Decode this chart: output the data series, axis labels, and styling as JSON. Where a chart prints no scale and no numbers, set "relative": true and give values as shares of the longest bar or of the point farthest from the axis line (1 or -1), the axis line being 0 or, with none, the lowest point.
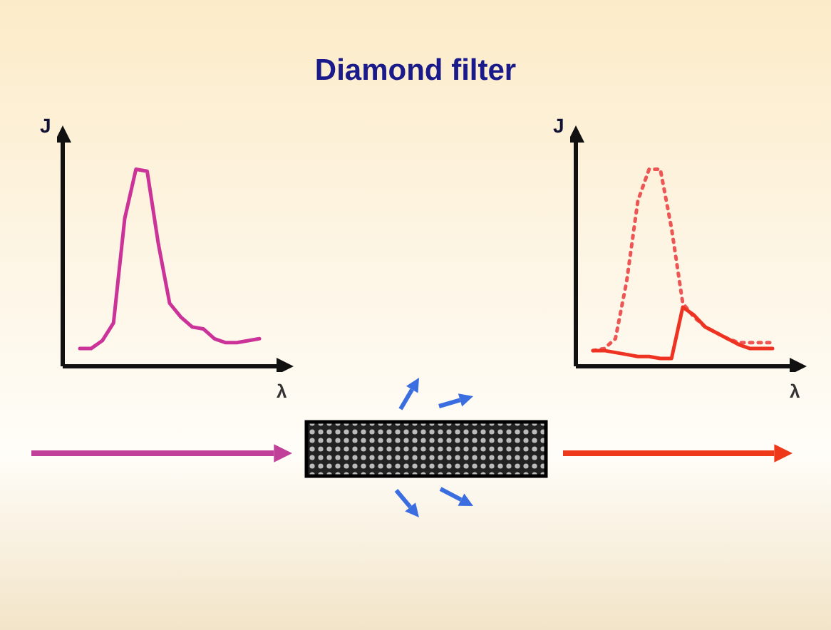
{
  "chart_data": [
    {
      "type": "other",
      "title": "Diamond filter"
    },
    {
      "type": "line",
      "xlabel": "λ",
      "ylabel": "J",
      "relative": true,
      "marker": "none",
      "categories": [
        null,
        null,
        null,
        null,
        null,
        null,
        null,
        null,
        null,
        null,
        null,
        null,
        null,
        null,
        null,
        null,
        null
      ],
      "series": [
        {
          "color": "#cc3399",
          "line_style": "solid",
          "values": [
            0.09,
            0.09,
            0.13,
            0.22,
            0.75,
            1,
            0.99,
            0.62,
            0.32,
            0.25,
            0.2,
            0.19,
            0.14,
            0.12,
            0.12,
            0.13,
            0.14
          ]
        }
      ]
    },
    {
      "type": "line",
      "xlabel": "λ",
      "ylabel": "J",
      "relative": true,
      "marker": "none",
      "categories": [
        null,
        null,
        null,
        null,
        null,
        null,
        null,
        null,
        null,
        null,
        null,
        null,
        null,
        null,
        null,
        null,
        null
      ],
      "series": [
        {
          "color": "#ee5555",
          "line_style": "dotted",
          "values": [
            0.08,
            0.09,
            0.14,
            0.43,
            0.84,
            1,
            1,
            0.7,
            0.32,
            0.25,
            0.2,
            0.17,
            0.14,
            0.12,
            0.12,
            0.12,
            0.12
          ]
        },
        {
          "color": "#ee3322",
          "line_style": "solid",
          "values": [
            0.08,
            0.08,
            0.07,
            0.06,
            0.05,
            0.05,
            0.04,
            0.04,
            0.3,
            0.26,
            0.2,
            0.17,
            0.14,
            0.11,
            0.09,
            0.09,
            0.09
          ]
        }
      ]
    }
  ]
}
